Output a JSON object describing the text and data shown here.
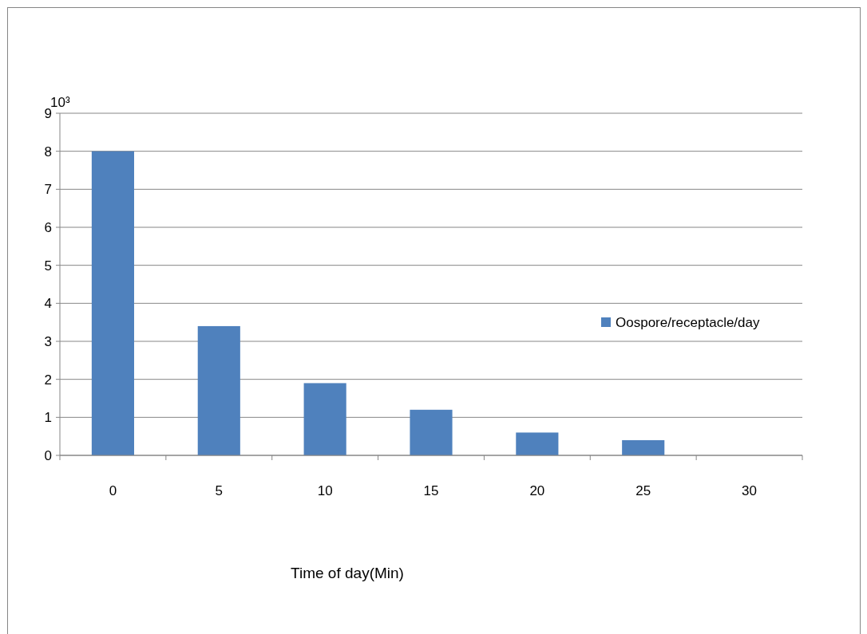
{
  "chart_data": {
    "type": "bar",
    "ylabel": "10³",
    "xlabel": "Time of day(Min)",
    "categories": [
      "0",
      "5",
      "10",
      "15",
      "20",
      "25",
      "30"
    ],
    "series": [
      {
        "name": "Oospore/receptacle/day",
        "color": "#4f81bd",
        "values": [
          8,
          3.4,
          1.9,
          1.2,
          0.6,
          0.4,
          0
        ]
      }
    ],
    "ylim": [
      0,
      9
    ],
    "yticks": [
      0,
      1,
      2,
      3,
      4,
      5,
      6,
      7,
      8,
      9
    ],
    "grid": "y",
    "legend": "right"
  }
}
